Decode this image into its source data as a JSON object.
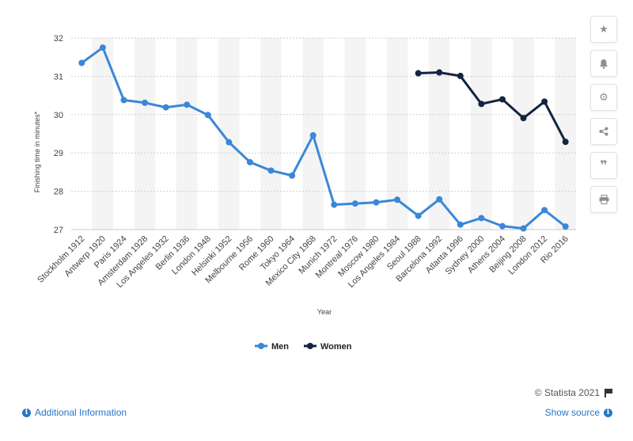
{
  "chart_data": {
    "type": "line",
    "categories": [
      "Stockholm 1912",
      "Antwerp 1920",
      "Paris 1924",
      "Amsterdam 1928",
      "Los Angeles 1932",
      "Berlin 1936",
      "London 1948",
      "Helsinki 1952",
      "Melbourne 1956",
      "Rome 1960",
      "Tokyo 1964",
      "Mexico City 1968",
      "Munich 1972",
      "Montreal 1976",
      "Moscow 1980",
      "Los Angeles 1984",
      "Seoul 1988",
      "Barcelona 1992",
      "Atlanta 1996",
      "Sydney 2000",
      "Athens 2004",
      "Beijing 2008",
      "London 2012",
      "Rio 2016"
    ],
    "series": [
      {
        "name": "Men",
        "color": "#3a87d8",
        "values": [
          31.35,
          31.75,
          30.38,
          30.31,
          30.19,
          30.26,
          29.99,
          29.28,
          28.76,
          28.54,
          28.41,
          29.46,
          27.65,
          27.68,
          27.71,
          27.78,
          27.36,
          27.79,
          27.13,
          27.3,
          27.09,
          27.03,
          27.51,
          27.08
        ]
      },
      {
        "name": "Women",
        "color": "#13253f",
        "values": [
          null,
          null,
          null,
          null,
          null,
          null,
          null,
          null,
          null,
          null,
          null,
          null,
          null,
          null,
          null,
          null,
          31.08,
          31.1,
          31.01,
          30.28,
          30.4,
          29.91,
          30.34,
          29.29
        ]
      }
    ],
    "xlabel": "Year",
    "ylabel": "Finishing time in minutes*",
    "ylim": [
      27,
      32
    ],
    "yticks": [
      "27",
      "28",
      "29",
      "30",
      "31",
      "32"
    ],
    "grid": true,
    "legend": "bottom-center"
  },
  "sidebar": {
    "icons": [
      "star-icon",
      "bell-icon",
      "gear-icon",
      "share-icon",
      "quote-icon",
      "print-icon"
    ]
  },
  "footer": {
    "credit": "© Statista 2021",
    "additional_info": "Additional Information",
    "show_source": "Show source"
  }
}
